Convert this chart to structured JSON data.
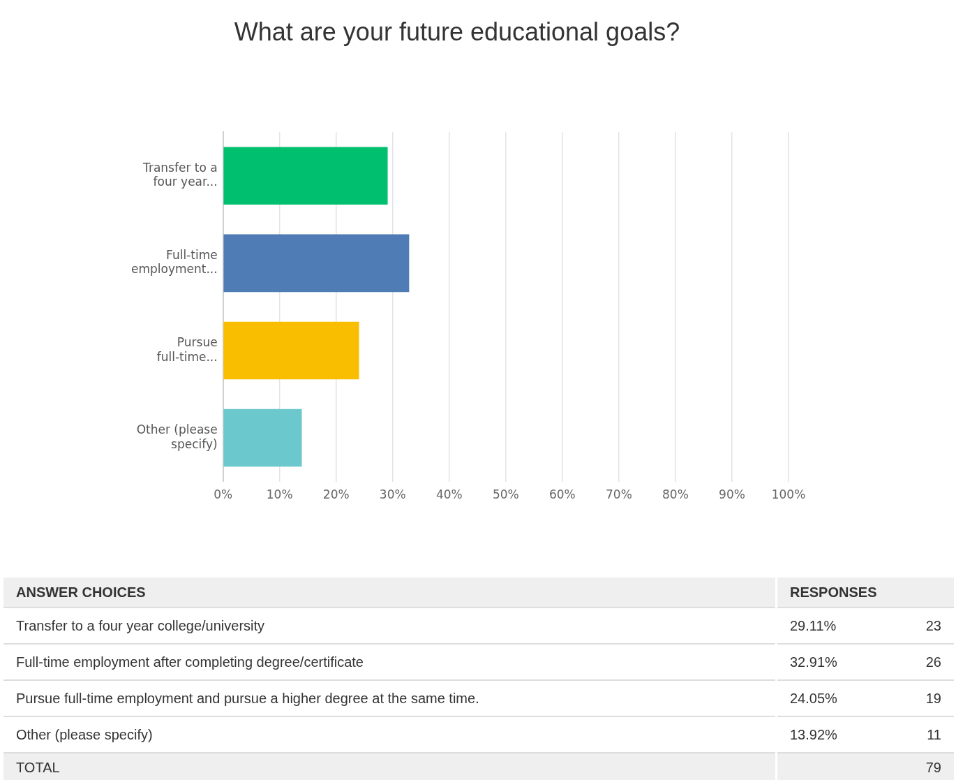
{
  "chart_data": {
    "type": "bar",
    "orientation": "horizontal",
    "title": "What are your future educational goals?",
    "categories": [
      "Transfer to a four year...",
      "Full-time employment...",
      "Pursue full-time...",
      "Other (please specify)"
    ],
    "values": [
      29.11,
      32.91,
      24.05,
      13.92
    ],
    "colors": [
      "#00bf6f",
      "#507cb6",
      "#f9be00",
      "#6bc8cd"
    ],
    "xlim": [
      0,
      100
    ],
    "xticks": [
      {
        "value": 0,
        "label": "0%"
      },
      {
        "value": 10,
        "label": "10%"
      },
      {
        "value": 20,
        "label": "20%"
      },
      {
        "value": 30,
        "label": "30%"
      },
      {
        "value": 40,
        "label": "40%"
      },
      {
        "value": 50,
        "label": "50%"
      },
      {
        "value": 60,
        "label": "60%"
      },
      {
        "value": 70,
        "label": "70%"
      },
      {
        "value": 80,
        "label": "80%"
      },
      {
        "value": 90,
        "label": "90%"
      },
      {
        "value": 100,
        "label": "100%"
      }
    ],
    "grid": "x",
    "legend": false,
    "annotations": [
      "ANSWER CHOICES",
      "RESPONSES",
      "Transfer to a four year college/university",
      "29.11%",
      "23",
      "Full-time employment after completing degree/certificate",
      "32.91%",
      "26",
      "Pursue full-time employment and pursue a higher degree at the same time.",
      "24.05%",
      "19",
      "Other (please specify)",
      "13.92%",
      "11",
      "TOTAL",
      "79"
    ]
  }
}
